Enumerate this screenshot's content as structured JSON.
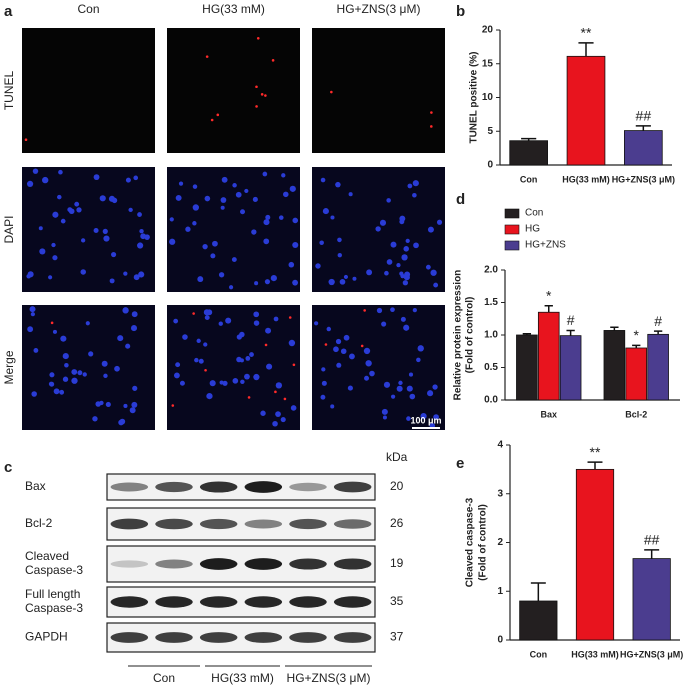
{
  "panel_labels": [
    "a",
    "b",
    "c",
    "d",
    "e"
  ],
  "panel_a": {
    "columns": [
      "Con",
      "HG(33 mM)",
      "HG+ZNS(3 μM)"
    ],
    "rows": [
      "TUNEL",
      "DAPI",
      "Merge"
    ],
    "scale_bar": "100 μm"
  },
  "panel_c": {
    "unit": "kDa",
    "rows": [
      {
        "label": [
          "Bax"
        ],
        "kda": "20"
      },
      {
        "label": [
          "Bcl-2"
        ],
        "kda": "26"
      },
      {
        "label": [
          "Cleaved",
          "Caspase-3"
        ],
        "kda": "19"
      },
      {
        "label": [
          "Full length",
          "Caspase-3"
        ],
        "kda": "35"
      },
      {
        "label": [
          "GAPDH"
        ],
        "kda": "37"
      }
    ],
    "groups": [
      "Con",
      "HG(33 mM)",
      "HG+ZNS(3 μM)"
    ]
  },
  "chart_data": [
    {
      "type": "bar",
      "ylabel": [
        "TUNEL positive (%)"
      ],
      "categories": [
        "Con",
        "HG(33 mM)",
        "HG+ZNS(3 μM)"
      ],
      "values": [
        3.6,
        16.1,
        5.1
      ],
      "errors": [
        0.3,
        2.0,
        0.7
      ],
      "colors": [
        "#231f20",
        "#e8141e",
        "#4b3d8f"
      ],
      "markers": [
        null,
        "**",
        "##"
      ],
      "ylim": [
        0,
        20
      ],
      "yticks": [
        0,
        5,
        10,
        15,
        20
      ]
    },
    {
      "type": "grouped-bar",
      "ylabel": [
        "Relative protein expression",
        "(Fold of control)"
      ],
      "categories": [
        "Bax",
        "Bcl-2"
      ],
      "series": [
        {
          "name": "Con",
          "color": "#231f20",
          "values": [
            1.0,
            1.07
          ],
          "errors": [
            0.02,
            0.05
          ],
          "markers": [
            null,
            null
          ]
        },
        {
          "name": "HG",
          "color": "#e8141e",
          "values": [
            1.35,
            0.8
          ],
          "errors": [
            0.1,
            0.04
          ],
          "markers": [
            "*",
            "*"
          ]
        },
        {
          "name": "HG+ZNS",
          "color": "#4b3d8f",
          "values": [
            0.99,
            1.01
          ],
          "errors": [
            0.08,
            0.05
          ],
          "markers": [
            "#",
            "#"
          ]
        }
      ],
      "legend": "upper left",
      "ylim": [
        0,
        2
      ],
      "yticks": [
        {
          "value": 0,
          "label": "0.0"
        },
        {
          "value": 0.5,
          "label": "0.5"
        },
        {
          "value": 1,
          "label": "1.0"
        },
        {
          "value": 1.5,
          "label": "1.5"
        },
        {
          "value": 2,
          "label": "2.0"
        }
      ]
    },
    {
      "type": "bar",
      "ylabel": [
        "Cleaved caspase-3",
        "(Fold of control)"
      ],
      "categories": [
        "Con",
        "HG(33 mM)",
        "HG+ZNS(3 μM)"
      ],
      "values": [
        0.8,
        3.5,
        1.67
      ],
      "errors": [
        0.37,
        0.15,
        0.18
      ],
      "colors": [
        "#231f20",
        "#e8141e",
        "#4b3d8f"
      ],
      "markers": [
        null,
        "**",
        "##"
      ],
      "ylim": [
        0,
        4
      ],
      "yticks": [
        0,
        1,
        2,
        3,
        4
      ]
    }
  ]
}
